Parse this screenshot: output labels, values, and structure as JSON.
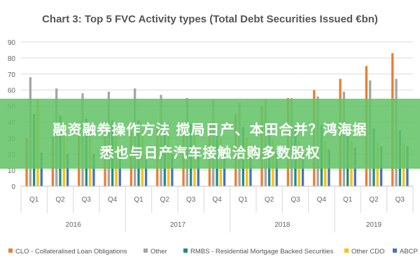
{
  "colors": {
    "clo": "#ed7d31",
    "other": "#a5a5a5",
    "rmbs": "#1f8a8a",
    "other_cdo": "#ffc000",
    "abcp": "#4472c4",
    "grid": "#d9d9d9",
    "overlay": "#64c468"
  },
  "overlay": {
    "line1": "融资融券操作方法 搅局日产、本田合并？鸿海据",
    "line2": "悉也与日产汽车接触洽购多数股权"
  },
  "chart_data": {
    "type": "bar",
    "title": "Chart 3: Top 5 FVC Activity types (Total Debt Securities Issued €bn)",
    "xlabel": "",
    "ylabel": "",
    "ylim": [
      0,
      90
    ],
    "yticks": [
      "0",
      "10",
      "20",
      "30",
      "40",
      "50",
      "60",
      "70",
      "80",
      "90"
    ],
    "grid": true,
    "legend_position": "bottom",
    "categories": [
      "Q1",
      "Q2",
      "Q3",
      "Q4",
      "Q1",
      "Q2",
      "Q3",
      "Q4",
      "Q1",
      "Q2",
      "Q3",
      "Q4",
      "Q1",
      "Q2",
      "Q3"
    ],
    "years": [
      {
        "label": "2016",
        "span": 4
      },
      {
        "label": "2017",
        "span": 4
      },
      {
        "label": "2018",
        "span": 4
      },
      {
        "label": "2019",
        "span": 3
      }
    ],
    "series": [
      {
        "name": "CLO - Collateralised Loan Obligations",
        "color_key": "clo",
        "values": [
          30,
          31,
          32,
          33,
          34,
          36,
          38,
          40,
          45,
          50,
          55,
          60,
          67,
          75,
          83
        ]
      },
      {
        "name": "Other",
        "color_key": "other",
        "values": [
          68,
          61,
          58,
          59,
          61,
          57,
          55,
          54,
          52,
          54,
          55,
          56,
          59,
          66,
          67
        ]
      },
      {
        "name": "RMBS - Residential Mortgage Backed Securities",
        "color_key": "rmbs",
        "values": [
          45,
          44,
          42,
          41,
          41,
          40,
          39,
          38,
          37,
          37,
          37,
          38,
          37,
          36,
          35
        ]
      },
      {
        "name": "Other CDO",
        "color_key": "other_cdo",
        "values": [
          54,
          40,
          39,
          38,
          35,
          33,
          32,
          30,
          30,
          29,
          28,
          28,
          28,
          27,
          26
        ]
      },
      {
        "name": "ABCP",
        "color_key": "abcp",
        "values": [
          21,
          20,
          20,
          20,
          20,
          20,
          21,
          21,
          21,
          22,
          22,
          23,
          24,
          25,
          25
        ]
      }
    ]
  }
}
